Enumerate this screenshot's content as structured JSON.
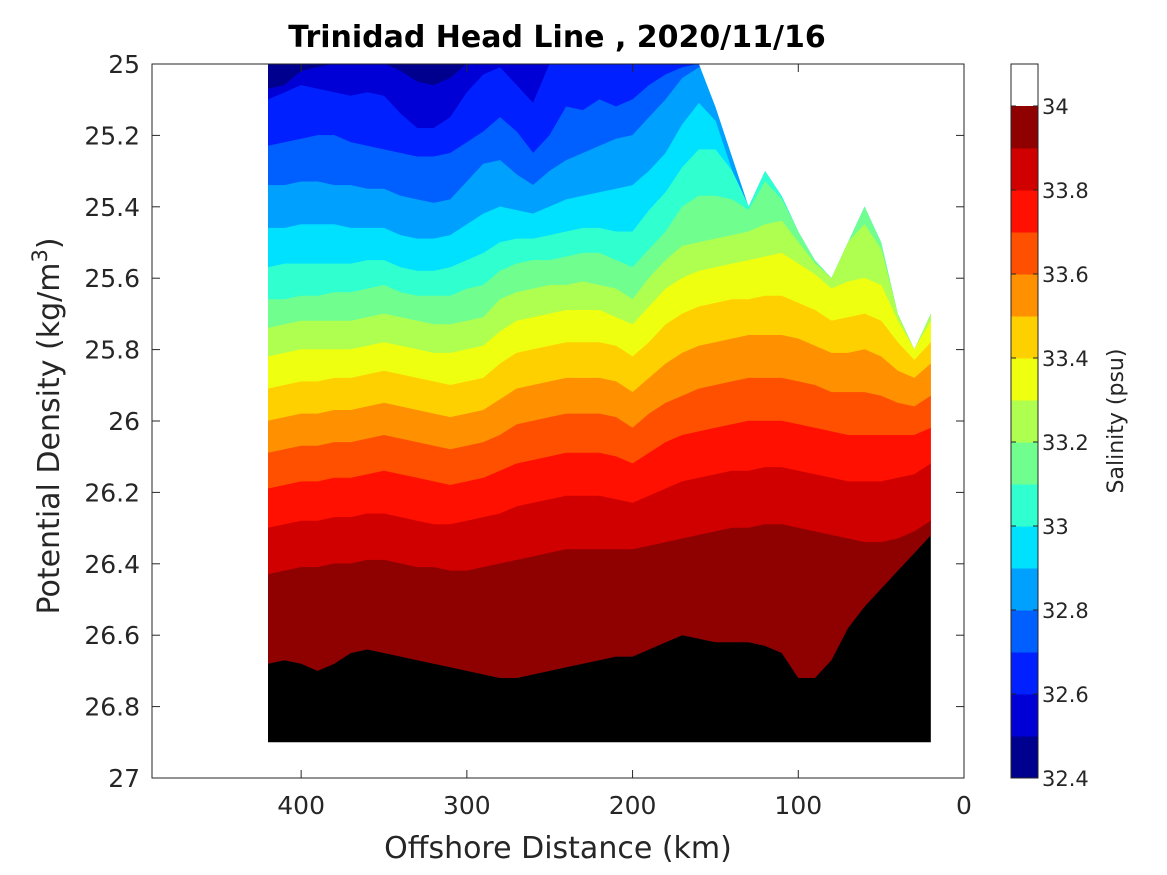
{
  "chart_data": {
    "type": "heatmap",
    "subtype": "filled-contour",
    "title": "Trinidad Head Line , 2020/11/16",
    "xlabel": "Offshore Distance (km)",
    "ylabel": "Potential Density (kg/m",
    "ylabel_superscript": "3",
    "ylabel_suffix": ")",
    "x_reversed": true,
    "y_reversed": true,
    "xlim": [
      490,
      0
    ],
    "ylim": [
      25,
      27
    ],
    "x_ticks": [
      400,
      300,
      200,
      100,
      0
    ],
    "x_tick_labels": [
      "400",
      "300",
      "200",
      "100",
      "0"
    ],
    "y_ticks": [
      25,
      25.2,
      25.4,
      25.6,
      25.8,
      26,
      26.2,
      26.4,
      26.6,
      26.8,
      27
    ],
    "y_tick_labels": [
      "25",
      "25.2",
      "25.4",
      "25.6",
      "25.8",
      "26",
      "26.2",
      "26.4",
      "26.6",
      "26.8",
      "27"
    ],
    "grid": false,
    "colorbar": {
      "label": "Salinity (psu)",
      "limits": [
        32.4,
        34.1
      ],
      "ticks": [
        32.4,
        32.6,
        32.8,
        33,
        33.2,
        33.4,
        33.6,
        33.8,
        34
      ],
      "tick_labels": [
        "32.4",
        "32.6",
        "32.8",
        "33",
        "33.2",
        "33.4",
        "33.6",
        "33.8",
        "34"
      ],
      "level_step": 0.1,
      "colormap": "jet",
      "level_colors": [
        "#00008f",
        "#0000d6",
        "#0020ff",
        "#0060ff",
        "#00a0ff",
        "#00e0ff",
        "#30ffcf",
        "#70ff8f",
        "#afff50",
        "#efff10",
        "#ffd000",
        "#ff9000",
        "#ff5000",
        "#ff1000",
        "#d00000",
        "#8f0000"
      ]
    },
    "bottom_boundary_density": 26.9,
    "station_distances": [
      420,
      410,
      400,
      390,
      380,
      370,
      360,
      350,
      340,
      330,
      320,
      310,
      300,
      290,
      280,
      270,
      260,
      250,
      240,
      230,
      220,
      210,
      200,
      190,
      180,
      170,
      160,
      150,
      140,
      130,
      120,
      110,
      100,
      90,
      80,
      70,
      60,
      50,
      40,
      30,
      20
    ],
    "surface_density": [
      25,
      25,
      25,
      25,
      25,
      25,
      25,
      25,
      25,
      25,
      25,
      25,
      25,
      25,
      25,
      25,
      25,
      25,
      25,
      25,
      25,
      25,
      25,
      25,
      25,
      25,
      25,
      25.12,
      25.26,
      25.4,
      25.3,
      25.37,
      25.47,
      25.55,
      25.6,
      25.5,
      25.4,
      25.5,
      25.7,
      25.8,
      25.7
    ],
    "isohaline_densities": {
      "32.5": [
        25.07,
        25.06,
        25.02,
        25.01,
        25.0,
        25.0,
        25.0,
        25.0,
        25.02,
        25.05,
        25.06,
        25.04,
        25.0,
        25.0,
        25.0,
        25.0,
        25.0,
        25.0,
        25.0,
        25.0,
        25.0,
        25.0,
        25.0,
        25.0,
        25.0,
        25.0,
        25.0,
        25.0,
        25.0,
        25.0,
        25.0,
        25.0,
        25.0,
        25.0,
        25.0,
        25.0,
        25.0,
        25.0,
        25.0,
        25.0,
        25.0
      ],
      "32.6": [
        25.1,
        25.08,
        25.06,
        25.07,
        25.08,
        25.09,
        25.08,
        25.09,
        25.14,
        25.18,
        25.18,
        25.15,
        25.08,
        25.03,
        25.01,
        25.06,
        25.11,
        25.0,
        25.0,
        25.0,
        25.0,
        25.0,
        25.0,
        25.0,
        25.0,
        25.0,
        25.0,
        25.0,
        25.0,
        25.0,
        25.0,
        25.0,
        25.0,
        25.0,
        25.0,
        25.0,
        25.0,
        25.0,
        25.0,
        25.0,
        25.0
      ],
      "32.7": [
        25.23,
        25.22,
        25.21,
        25.2,
        25.2,
        25.22,
        25.23,
        25.24,
        25.25,
        25.26,
        25.26,
        25.25,
        25.22,
        25.19,
        25.15,
        25.19,
        25.25,
        25.2,
        25.12,
        25.13,
        25.1,
        25.12,
        25.1,
        25.06,
        25.03,
        25.01,
        25.0,
        25.0,
        25.0,
        25.0,
        25.0,
        25.0,
        25.0,
        25.0,
        25.0,
        25.0,
        25.0,
        25.0,
        25.0,
        25.0,
        25.0
      ],
      "32.8": [
        25.34,
        25.34,
        25.33,
        25.33,
        25.34,
        25.34,
        25.35,
        25.35,
        25.37,
        25.38,
        25.39,
        25.38,
        25.33,
        25.28,
        25.27,
        25.31,
        25.34,
        25.3,
        25.27,
        25.25,
        25.23,
        25.21,
        25.2,
        25.15,
        25.1,
        25.04,
        25.01,
        25.0,
        25.0,
        25.0,
        25.0,
        25.0,
        25.0,
        25.0,
        25.0,
        25.0,
        25.0,
        25.0,
        25.0,
        25.0,
        25.0
      ],
      "32.9": [
        25.46,
        25.46,
        25.45,
        25.45,
        25.45,
        25.46,
        25.46,
        25.46,
        25.48,
        25.49,
        25.49,
        25.48,
        25.45,
        25.42,
        25.4,
        25.41,
        25.42,
        25.4,
        25.38,
        25.37,
        25.36,
        25.35,
        25.34,
        25.3,
        25.25,
        25.17,
        25.11,
        25.16,
        25.3,
        25.4,
        25.3,
        25.37,
        25.47,
        25.55,
        25.6,
        25.5,
        25.4,
        25.5,
        25.7,
        25.8,
        25.7
      ],
      "33.0": [
        25.57,
        25.56,
        25.56,
        25.56,
        25.56,
        25.56,
        25.55,
        25.55,
        25.57,
        25.58,
        25.58,
        25.57,
        25.55,
        25.53,
        25.5,
        25.49,
        25.49,
        25.48,
        25.47,
        25.46,
        25.46,
        25.47,
        25.47,
        25.41,
        25.36,
        25.29,
        25.24,
        25.24,
        25.3,
        25.4,
        25.3,
        25.37,
        25.47,
        25.55,
        25.6,
        25.5,
        25.4,
        25.5,
        25.7,
        25.8,
        25.7
      ],
      "33.1": [
        25.66,
        25.66,
        25.65,
        25.65,
        25.64,
        25.64,
        25.63,
        25.62,
        25.64,
        25.65,
        25.65,
        25.65,
        25.63,
        25.62,
        25.58,
        25.56,
        25.55,
        25.55,
        25.54,
        25.53,
        25.53,
        25.55,
        25.57,
        25.52,
        25.47,
        25.4,
        25.37,
        25.37,
        25.38,
        25.41,
        25.33,
        25.38,
        25.47,
        25.55,
        25.6,
        25.5,
        25.4,
        25.5,
        25.7,
        25.8,
        25.7
      ],
      "33.2": [
        25.74,
        25.73,
        25.72,
        25.72,
        25.72,
        25.72,
        25.71,
        25.7,
        25.71,
        25.72,
        25.73,
        25.73,
        25.72,
        25.71,
        25.66,
        25.64,
        25.63,
        25.62,
        25.62,
        25.61,
        25.62,
        25.63,
        25.66,
        25.6,
        25.55,
        25.51,
        25.5,
        25.49,
        25.48,
        25.47,
        25.45,
        25.44,
        25.5,
        25.56,
        25.6,
        25.5,
        25.45,
        25.52,
        25.7,
        25.8,
        25.7
      ],
      "33.3": [
        25.82,
        25.81,
        25.8,
        25.8,
        25.8,
        25.8,
        25.79,
        25.78,
        25.79,
        25.8,
        25.81,
        25.81,
        25.8,
        25.79,
        25.75,
        25.72,
        25.71,
        25.7,
        25.69,
        25.69,
        25.69,
        25.71,
        25.73,
        25.68,
        25.63,
        25.6,
        25.58,
        25.57,
        25.56,
        25.55,
        25.54,
        25.53,
        25.56,
        25.59,
        25.63,
        25.61,
        25.6,
        25.62,
        25.72,
        25.8,
        25.72
      ],
      "33.4": [
        25.91,
        25.9,
        25.89,
        25.89,
        25.88,
        25.88,
        25.87,
        25.86,
        25.87,
        25.88,
        25.89,
        25.9,
        25.89,
        25.88,
        25.84,
        25.81,
        25.8,
        25.79,
        25.78,
        25.78,
        25.78,
        25.79,
        25.82,
        25.78,
        25.73,
        25.7,
        25.68,
        25.67,
        25.66,
        25.66,
        25.65,
        25.65,
        25.67,
        25.69,
        25.72,
        25.71,
        25.7,
        25.72,
        25.78,
        25.83,
        25.78
      ],
      "33.5": [
        26.0,
        25.99,
        25.98,
        25.98,
        25.97,
        25.97,
        25.96,
        25.95,
        25.96,
        25.97,
        25.98,
        25.99,
        25.98,
        25.97,
        25.94,
        25.91,
        25.9,
        25.89,
        25.88,
        25.88,
        25.88,
        25.89,
        25.92,
        25.88,
        25.84,
        25.81,
        25.79,
        25.78,
        25.77,
        25.76,
        25.76,
        25.76,
        25.77,
        25.79,
        25.81,
        25.81,
        25.8,
        25.82,
        25.86,
        25.88,
        25.84
      ],
      "33.6": [
        26.09,
        26.08,
        26.07,
        26.07,
        26.06,
        26.06,
        26.05,
        26.04,
        26.05,
        26.06,
        26.07,
        26.08,
        26.07,
        26.06,
        26.04,
        26.01,
        26.0,
        25.99,
        25.98,
        25.98,
        25.98,
        25.99,
        26.02,
        25.98,
        25.95,
        25.93,
        25.91,
        25.9,
        25.89,
        25.88,
        25.88,
        25.88,
        25.89,
        25.9,
        25.92,
        25.92,
        25.92,
        25.93,
        25.95,
        25.96,
        25.93
      ],
      "33.7": [
        26.19,
        26.18,
        26.17,
        26.17,
        26.16,
        26.16,
        26.15,
        26.14,
        26.15,
        26.16,
        26.17,
        26.18,
        26.17,
        26.16,
        26.14,
        26.12,
        26.11,
        26.1,
        26.09,
        26.09,
        26.09,
        26.1,
        26.12,
        26.09,
        26.06,
        26.04,
        26.03,
        26.02,
        26.01,
        26.0,
        26.0,
        26.0,
        26.01,
        26.02,
        26.03,
        26.04,
        26.04,
        26.04,
        26.04,
        26.04,
        26.02
      ],
      "33.8": [
        26.3,
        26.29,
        26.28,
        26.28,
        26.27,
        26.27,
        26.26,
        26.26,
        26.27,
        26.28,
        26.29,
        26.29,
        26.28,
        26.27,
        26.26,
        26.24,
        26.23,
        26.22,
        26.21,
        26.21,
        26.21,
        26.22,
        26.23,
        26.21,
        26.19,
        26.17,
        26.16,
        26.15,
        26.14,
        26.14,
        26.13,
        26.13,
        26.14,
        26.15,
        26.16,
        26.17,
        26.17,
        26.17,
        26.16,
        26.15,
        26.12
      ],
      "33.9": [
        26.43,
        26.42,
        26.41,
        26.41,
        26.4,
        26.4,
        26.39,
        26.39,
        26.4,
        26.41,
        26.41,
        26.42,
        26.42,
        26.41,
        26.4,
        26.39,
        26.38,
        26.37,
        26.36,
        26.36,
        26.36,
        26.36,
        26.36,
        26.35,
        26.34,
        26.33,
        26.32,
        26.31,
        26.3,
        26.3,
        26.29,
        26.29,
        26.3,
        26.31,
        26.32,
        26.33,
        26.34,
        26.34,
        26.33,
        26.31,
        26.28
      ],
      "34.0": [
        26.68,
        26.67,
        26.68,
        26.7,
        26.68,
        26.65,
        26.64,
        26.65,
        26.66,
        26.67,
        26.68,
        26.69,
        26.7,
        26.71,
        26.72,
        26.72,
        26.71,
        26.7,
        26.69,
        26.68,
        26.67,
        26.66,
        26.66,
        26.64,
        26.62,
        26.6,
        26.61,
        26.62,
        26.62,
        26.62,
        26.63,
        26.65,
        26.72,
        26.72,
        26.67,
        26.58,
        26.52,
        26.47,
        26.42,
        26.37,
        26.32
      ],
      "34.1": [
        27.0,
        27.0,
        27.0,
        27.0,
        27.0,
        26.94,
        26.92,
        26.94,
        27.0,
        27.0,
        27.0,
        27.0,
        27.0,
        27.0,
        27.0,
        27.0,
        27.0,
        27.0,
        27.0,
        27.0,
        27.0,
        27.0,
        27.0,
        27.0,
        27.0,
        27.0,
        27.0,
        27.0,
        26.92,
        26.91,
        26.91,
        26.92,
        26.92,
        26.91,
        26.91,
        26.91,
        27.0,
        27.0,
        27.0,
        27.0,
        27.0
      ]
    }
  }
}
